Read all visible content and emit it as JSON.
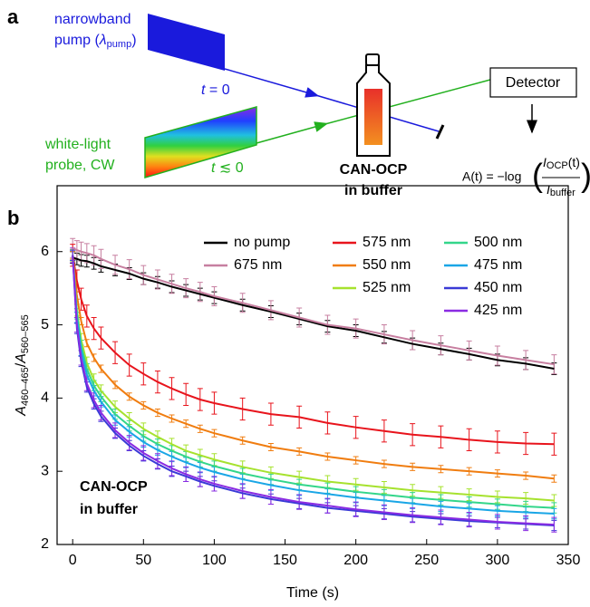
{
  "panel_a": {
    "panel_label": "a",
    "pump_line1": "narrowband",
    "pump_line2": {
      "text": "pump (",
      "symbol": "λ",
      "subscript": "pump",
      "close": ")"
    },
    "pump_time": {
      "symbol": "t",
      "text": " = 0"
    },
    "probe_line1": "white-light",
    "probe_line2": "probe, CW",
    "probe_time": {
      "symbol": "t",
      "text": " ≲ 0"
    },
    "sample_line1": "CAN-OCP",
    "sample_line2": "in buffer",
    "detector": "Detector",
    "formula": {
      "lhs": "A(t) = −log",
      "num": "I",
      "num_sub": "OCP",
      "num_tail": "(t)",
      "den": "I",
      "den_sub": "buffer"
    }
  },
  "chart_data": {
    "type": "line",
    "panel_label": "b",
    "annotation": [
      "CAN-OCP",
      "in buffer"
    ],
    "x_label": "Time (s)",
    "y_label": {
      "a1": "A",
      "s1": "460–465",
      "slash": "/",
      "a2": "A",
      "s2": "560–565"
    },
    "xlim": [
      -11,
      350
    ],
    "ylim": [
      2,
      6.9
    ],
    "xticks": [
      0,
      50,
      100,
      150,
      200,
      250,
      300,
      350
    ],
    "yticks": [
      2,
      3,
      4,
      5,
      6
    ],
    "x": [
      0,
      3,
      6,
      10,
      15,
      20,
      30,
      40,
      50,
      60,
      70,
      80,
      90,
      100,
      120,
      140,
      160,
      180,
      200,
      220,
      240,
      260,
      280,
      300,
      320,
      340
    ],
    "series": [
      {
        "name": "no pump",
        "color": "#000000",
        "error": 0.08,
        "values": [
          5.92,
          5.9,
          5.88,
          5.87,
          5.84,
          5.8,
          5.75,
          5.7,
          5.63,
          5.58,
          5.52,
          5.47,
          5.42,
          5.37,
          5.27,
          5.18,
          5.08,
          4.98,
          4.92,
          4.83,
          4.74,
          4.67,
          4.6,
          4.52,
          4.47,
          4.4
        ]
      },
      {
        "name": "675 nm",
        "color": "#c77fa0",
        "error": 0.13,
        "values": [
          6.05,
          6.02,
          6.0,
          5.98,
          5.95,
          5.9,
          5.82,
          5.76,
          5.68,
          5.62,
          5.56,
          5.5,
          5.45,
          5.39,
          5.3,
          5.2,
          5.1,
          5.0,
          4.95,
          4.87,
          4.79,
          4.72,
          4.65,
          4.58,
          4.52,
          4.46
        ]
      },
      {
        "name": "575 nm",
        "color": "#e8141c",
        "error": 0.15,
        "values": [
          5.95,
          5.6,
          5.35,
          5.12,
          4.95,
          4.82,
          4.62,
          4.45,
          4.33,
          4.22,
          4.13,
          4.05,
          3.98,
          3.93,
          3.85,
          3.78,
          3.74,
          3.66,
          3.6,
          3.55,
          3.5,
          3.47,
          3.43,
          3.4,
          3.38,
          3.37
        ]
      },
      {
        "name": "550 nm",
        "color": "#f07d10",
        "error": 0.05,
        "values": [
          5.95,
          5.4,
          5.05,
          4.75,
          4.55,
          4.4,
          4.18,
          4.02,
          3.9,
          3.8,
          3.72,
          3.65,
          3.58,
          3.52,
          3.42,
          3.33,
          3.27,
          3.2,
          3.15,
          3.1,
          3.06,
          3.03,
          3.0,
          2.97,
          2.94,
          2.9
        ]
      },
      {
        "name": "525 nm",
        "color": "#a6e22e",
        "error": 0.08,
        "values": [
          5.95,
          5.2,
          4.8,
          4.48,
          4.25,
          4.1,
          3.88,
          3.72,
          3.58,
          3.47,
          3.37,
          3.28,
          3.22,
          3.16,
          3.06,
          2.98,
          2.92,
          2.86,
          2.82,
          2.78,
          2.74,
          2.71,
          2.68,
          2.65,
          2.63,
          2.6
        ]
      },
      {
        "name": "500 nm",
        "color": "#33d68a",
        "error": 0.07,
        "values": [
          5.95,
          5.15,
          4.72,
          4.4,
          4.17,
          4.02,
          3.78,
          3.62,
          3.48,
          3.37,
          3.28,
          3.2,
          3.13,
          3.07,
          2.97,
          2.89,
          2.82,
          2.77,
          2.72,
          2.68,
          2.64,
          2.61,
          2.58,
          2.55,
          2.52,
          2.5
        ]
      },
      {
        "name": "475 nm",
        "color": "#1aa6e6",
        "error": 0.07,
        "values": [
          5.95,
          5.1,
          4.65,
          4.32,
          4.1,
          3.95,
          3.7,
          3.54,
          3.4,
          3.29,
          3.2,
          3.12,
          3.05,
          2.99,
          2.89,
          2.81,
          2.74,
          2.69,
          2.64,
          2.6,
          2.56,
          2.52,
          2.49,
          2.46,
          2.44,
          2.42
        ]
      },
      {
        "name": "450 nm",
        "color": "#3a3ad6",
        "error": 0.07,
        "values": [
          5.95,
          4.95,
          4.5,
          4.15,
          3.92,
          3.75,
          3.52,
          3.35,
          3.21,
          3.1,
          3.0,
          2.93,
          2.86,
          2.8,
          2.7,
          2.62,
          2.56,
          2.5,
          2.46,
          2.42,
          2.38,
          2.35,
          2.32,
          2.3,
          2.28,
          2.26
        ]
      },
      {
        "name": "425 nm",
        "color": "#8a2be2",
        "error": 0.1,
        "values": [
          5.95,
          5.0,
          4.55,
          4.2,
          3.97,
          3.8,
          3.56,
          3.39,
          3.25,
          3.14,
          3.04,
          2.96,
          2.89,
          2.83,
          2.73,
          2.65,
          2.58,
          2.53,
          2.48,
          2.44,
          2.4,
          2.37,
          2.34,
          2.31,
          2.29,
          2.27
        ]
      }
    ]
  }
}
